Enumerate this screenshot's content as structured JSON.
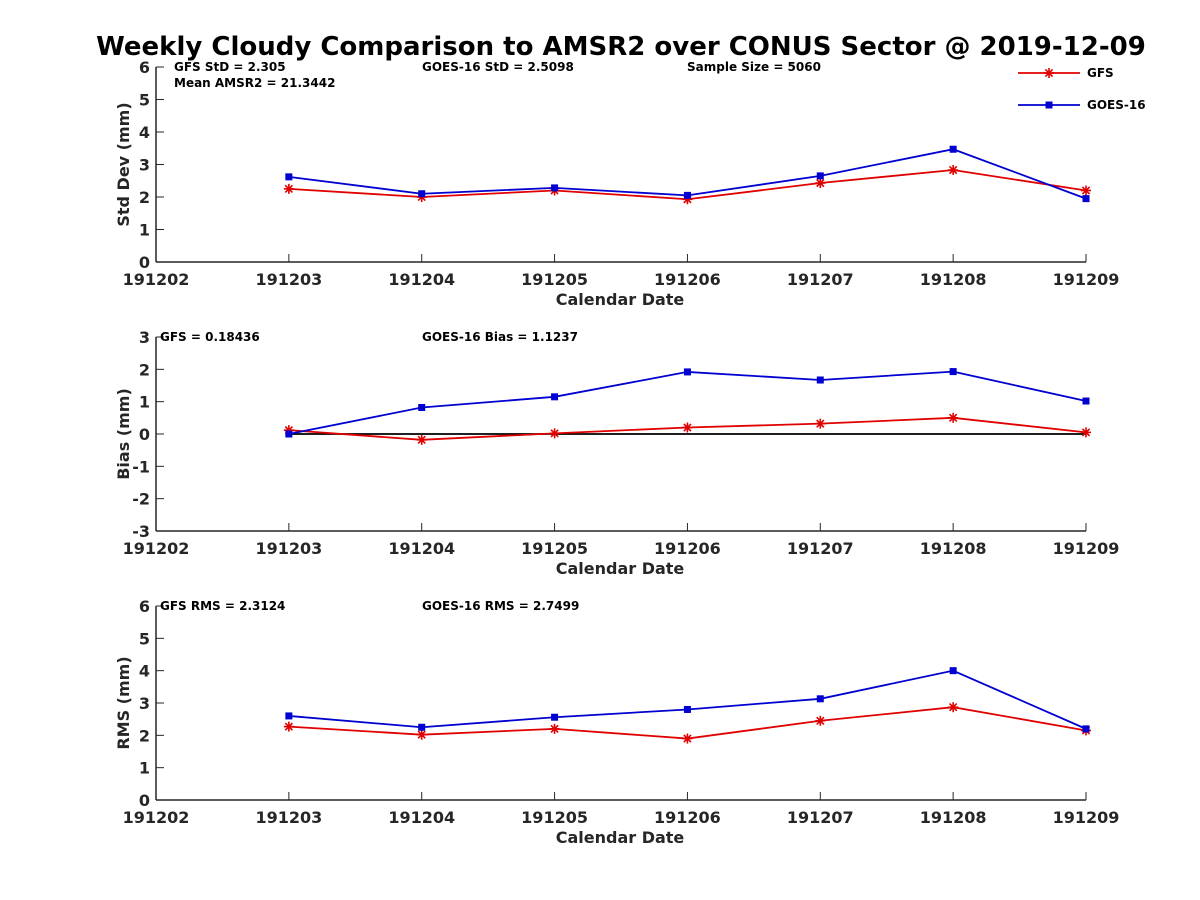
{
  "figure": {
    "title": "Weekly Cloudy Comparison to AMSR2 over CONUS Sector @ 2019-12-09"
  },
  "legend": {
    "placement": "top-right",
    "entries": [
      {
        "name": "GFS",
        "color": "#e00000",
        "marker": "asterisk"
      },
      {
        "name": "GOES-16",
        "color": "#0000d0",
        "marker": "square"
      }
    ]
  },
  "chart_data": [
    {
      "type": "line",
      "id": "stddev",
      "categories": [
        "191202",
        "191203",
        "191204",
        "191205",
        "191206",
        "191207",
        "191208",
        "191209"
      ],
      "xlabel": "Calendar Date",
      "ylabel": "Std Dev (mm)",
      "ylim": [
        0,
        6
      ],
      "yticks": [
        "0",
        "1",
        "2",
        "3",
        "4",
        "5",
        "6"
      ],
      "zero_line": false,
      "series": [
        {
          "name": "GFS",
          "color": "#e00000",
          "marker": "asterisk",
          "values": [
            null,
            2.25,
            2.0,
            2.2,
            1.93,
            2.43,
            2.83,
            2.2
          ]
        },
        {
          "name": "GOES-16",
          "color": "#0000d0",
          "marker": "square",
          "values": [
            null,
            2.62,
            2.1,
            2.28,
            2.05,
            2.65,
            3.47,
            1.95
          ]
        }
      ],
      "annotations": {
        "left": "GFS StD = 2.305",
        "left2": "Mean AMSR2 = 21.3442",
        "middle": "GOES-16 StD = 2.5098",
        "right": "Sample Size = 5060"
      }
    },
    {
      "type": "line",
      "id": "bias",
      "categories": [
        "191202",
        "191203",
        "191204",
        "191205",
        "191206",
        "191207",
        "191208",
        "191209"
      ],
      "xlabel": "Calendar Date",
      "ylabel": "Bias (mm)",
      "ylim": [
        -3,
        3
      ],
      "yticks": [
        "-3",
        "-2",
        "-1",
        "0",
        "1",
        "2",
        "3"
      ],
      "zero_line": true,
      "series": [
        {
          "name": "GFS",
          "color": "#e00000",
          "marker": "asterisk",
          "values": [
            null,
            0.12,
            -0.18,
            0.02,
            0.2,
            0.32,
            0.5,
            0.05
          ]
        },
        {
          "name": "GOES-16",
          "color": "#0000d0",
          "marker": "square",
          "values": [
            null,
            0.0,
            0.82,
            1.15,
            1.92,
            1.67,
            1.93,
            1.02
          ]
        }
      ],
      "annotations": {
        "left": "GFS = 0.18436",
        "middle": "GOES-16 Bias  = 1.1237"
      }
    },
    {
      "type": "line",
      "id": "rms",
      "categories": [
        "191202",
        "191203",
        "191204",
        "191205",
        "191206",
        "191207",
        "191208",
        "191209"
      ],
      "xlabel": "Calendar Date",
      "ylabel": "RMS (mm)",
      "ylim": [
        0,
        6
      ],
      "yticks": [
        "0",
        "1",
        "2",
        "3",
        "4",
        "5",
        "6"
      ],
      "zero_line": false,
      "series": [
        {
          "name": "GFS",
          "color": "#e00000",
          "marker": "asterisk",
          "values": [
            null,
            2.27,
            2.02,
            2.2,
            1.9,
            2.45,
            2.87,
            2.15
          ]
        },
        {
          "name": "GOES-16",
          "color": "#0000d0",
          "marker": "square",
          "values": [
            null,
            2.6,
            2.25,
            2.56,
            2.8,
            3.13,
            4.0,
            2.2
          ]
        }
      ],
      "annotations": {
        "left": "GFS RMS = 2.3124",
        "middle": "GOES-16 RMS = 2.7499"
      }
    }
  ]
}
